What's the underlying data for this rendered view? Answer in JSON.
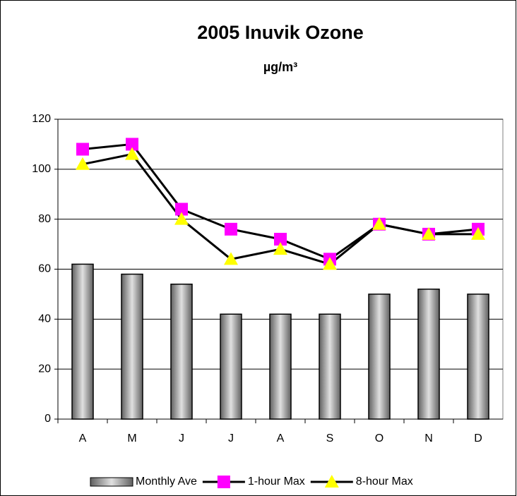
{
  "chart_data": {
    "type": "bar_line",
    "title": "2005 Inuvik Ozone",
    "subtitle": "µg/m³",
    "categories": [
      "A",
      "M",
      "J",
      "J",
      "A",
      "S",
      "O",
      "N",
      "D"
    ],
    "series": [
      {
        "name": "Monthly Ave",
        "type": "bar",
        "color": "#a0a0a0",
        "values": [
          62,
          58,
          54,
          42,
          42,
          42,
          50,
          52,
          50
        ]
      },
      {
        "name": "1-hour Max",
        "type": "line",
        "color": "#ff00ff",
        "marker": "square",
        "values": [
          108,
          110,
          84,
          76,
          72,
          64,
          78,
          74,
          76
        ]
      },
      {
        "name": "8-hour Max",
        "type": "line",
        "color": "#ffff00",
        "marker": "triangle",
        "values": [
          102,
          106,
          80,
          64,
          68,
          62,
          78,
          74,
          74
        ]
      }
    ],
    "ylim": [
      0,
      120
    ],
    "yticks": [
      0,
      20,
      40,
      60,
      80,
      100,
      120
    ],
    "grid": true,
    "legend": "bottom"
  }
}
